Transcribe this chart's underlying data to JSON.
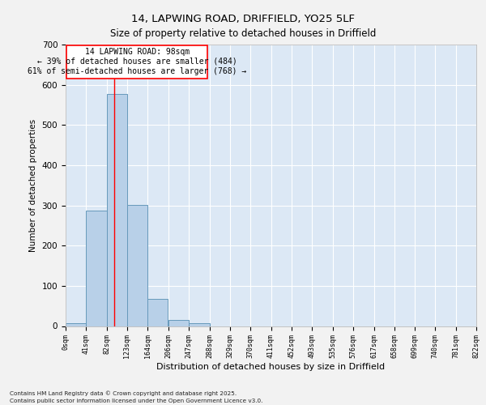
{
  "title_line1": "14, LAPWING ROAD, DRIFFIELD, YO25 5LF",
  "title_line2": "Size of property relative to detached houses in Driffield",
  "xlabel": "Distribution of detached houses by size in Driffield",
  "ylabel": "Number of detached properties",
  "bar_color": "#b8d0e8",
  "bar_edge_color": "#6699bb",
  "background_color": "#dce8f5",
  "grid_color": "#ffffff",
  "red_line_x": 98,
  "annotation_text_line1": "14 LAPWING ROAD: 98sqm",
  "annotation_text_line2": "← 39% of detached houses are smaller (484)",
  "annotation_text_line3": "61% of semi-detached houses are larger (768) →",
  "footnote_line1": "Contains HM Land Registry data © Crown copyright and database right 2025.",
  "footnote_line2": "Contains public sector information licensed under the Open Government Licence v3.0.",
  "bin_edges": [
    0,
    41,
    82,
    123,
    164,
    206,
    247,
    288,
    329,
    370,
    411,
    452,
    493,
    535,
    576,
    617,
    658,
    699,
    740,
    781,
    822
  ],
  "bin_labels": [
    "0sqm",
    "41sqm",
    "82sqm",
    "123sqm",
    "164sqm",
    "206sqm",
    "247sqm",
    "288sqm",
    "329sqm",
    "370sqm",
    "411sqm",
    "452sqm",
    "493sqm",
    "535sqm",
    "576sqm",
    "617sqm",
    "658sqm",
    "699sqm",
    "740sqm",
    "781sqm",
    "822sqm"
  ],
  "bar_heights": [
    8,
    288,
    578,
    302,
    68,
    15,
    8,
    0,
    0,
    0,
    0,
    0,
    0,
    0,
    0,
    0,
    0,
    0,
    0,
    0
  ],
  "ylim": [
    0,
    700
  ],
  "yticks": [
    0,
    100,
    200,
    300,
    400,
    500,
    600,
    700
  ],
  "fig_bg": "#f2f2f2"
}
